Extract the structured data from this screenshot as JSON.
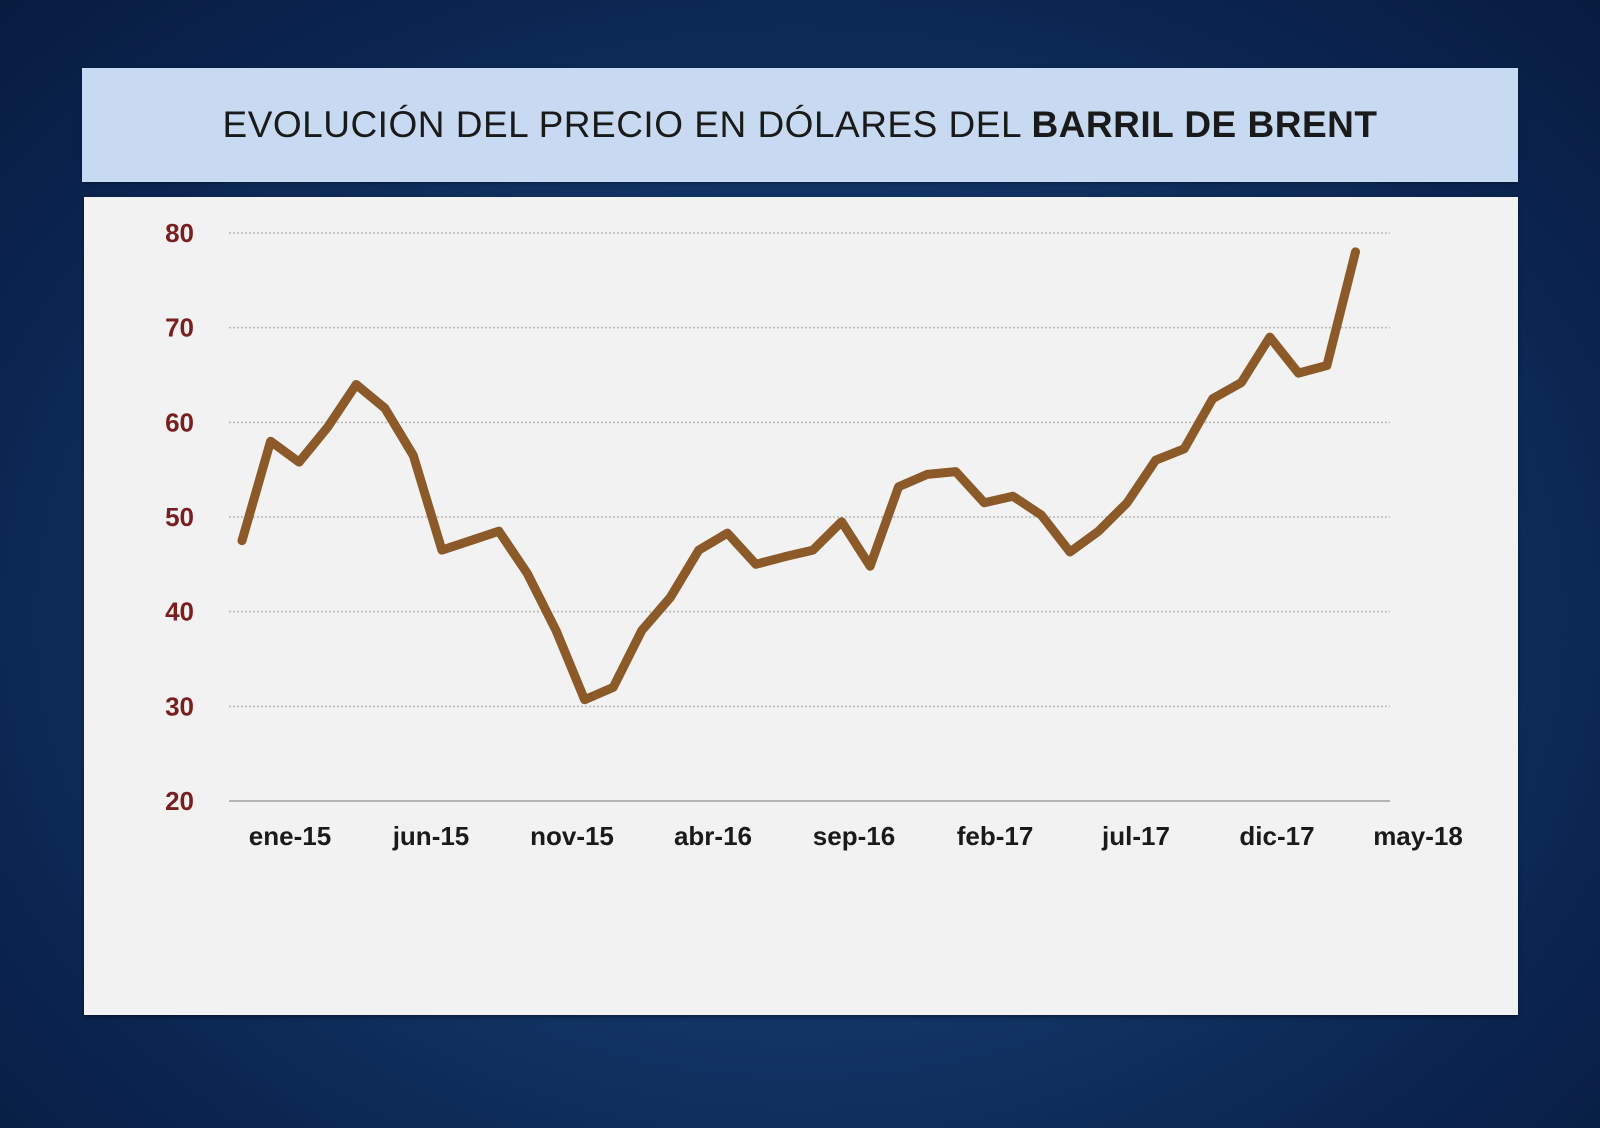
{
  "title": {
    "plain": "EVOLUCIÓN DEL PRECIO EN DÓLARES DEL",
    "bold": "BARRIL DE BRENT"
  },
  "colors": {
    "line": "#8c5a28",
    "ytick": "#7a1f1f",
    "title_bar": "#c7daf1",
    "panel": "#f2f2f2"
  },
  "chart_data": {
    "type": "line",
    "title": "EVOLUCIÓN DEL PRECIO EN DÓLARES DEL BARRIL DE BRENT",
    "xlabel": "",
    "ylabel": "",
    "ylim": [
      20,
      80
    ],
    "yticks": [
      20,
      30,
      40,
      50,
      60,
      70,
      80
    ],
    "grid": true,
    "xtick_labels": [
      "ene-15",
      "jun-15",
      "nov-15",
      "abr-16",
      "sep-16",
      "feb-17",
      "jul-17",
      "dic-17",
      "may-18"
    ],
    "x": [
      "ene-15",
      "feb-15",
      "mar-15",
      "abr-15",
      "may-15",
      "jun-15",
      "jul-15",
      "ago-15",
      "sep-15",
      "oct-15",
      "nov-15",
      "dic-15",
      "ene-16",
      "feb-16",
      "mar-16",
      "abr-16",
      "may-16",
      "jun-16",
      "jul-16",
      "ago-16",
      "sep-16",
      "oct-16",
      "nov-16",
      "dic-16",
      "ene-17",
      "feb-17",
      "mar-17",
      "abr-17",
      "may-17",
      "jun-17",
      "jul-17",
      "ago-17",
      "sep-17",
      "oct-17",
      "nov-17",
      "dic-17",
      "ene-18",
      "feb-18",
      "mar-18",
      "abr-18"
    ],
    "series": [
      {
        "values": [
          47.5,
          58,
          55.8,
          59.5,
          64,
          61.5,
          56.5,
          46.5,
          47.5,
          48.5,
          44,
          38,
          30.7,
          32,
          38,
          41.5,
          46.5,
          48.3,
          45,
          45.8,
          46.5,
          49.5,
          44.8,
          53.2,
          54.5,
          54.8,
          51.5,
          52.2,
          50.2,
          46.3,
          48.5,
          51.5,
          56,
          57.2,
          62.5,
          64.2,
          69,
          65.2,
          66,
          78
        ]
      }
    ]
  }
}
